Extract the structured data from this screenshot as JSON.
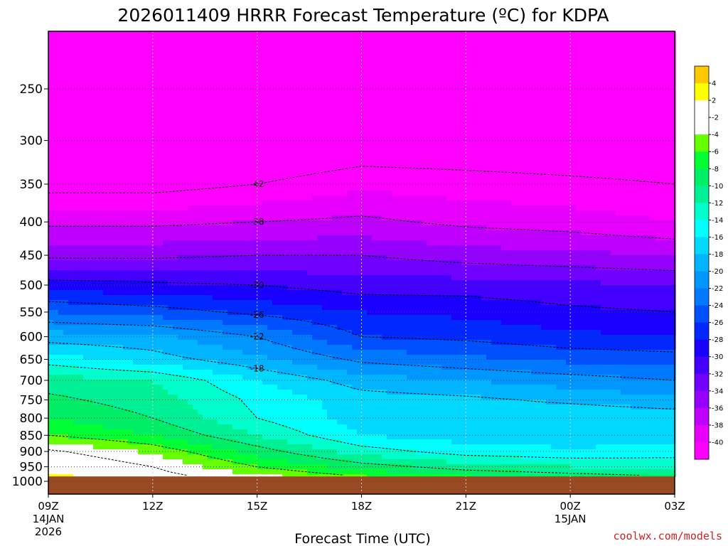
{
  "chart_data": {
    "type": "contour",
    "title": "2026011409 HRRR Forecast Temperature (ºC) for KDPA",
    "xlabel": "Forecast Time (UTC)",
    "credit": "coolwx.com/models",
    "x": {
      "ticks": [
        "09Z",
        "12Z",
        "15Z",
        "18Z",
        "21Z",
        "00Z",
        "03Z"
      ],
      "subticks": [
        [
          "14JAN",
          "2026"
        ],
        [],
        [],
        [],
        [],
        [
          "15JAN"
        ],
        []
      ],
      "hours_range": [
        0,
        18
      ]
    },
    "y": {
      "ticks": [
        250,
        300,
        350,
        400,
        450,
        500,
        550,
        600,
        650,
        700,
        750,
        800,
        850,
        900,
        950,
        1000
      ],
      "range": [
        200,
        1010
      ],
      "below_ground_from": 983
    },
    "colorbar": {
      "labels": [
        "4",
        "2",
        "-2",
        "-4",
        "-6",
        "-8",
        "-10",
        "-12",
        "-14",
        "-16",
        "-18",
        "-20",
        "-22",
        "-24",
        "-26",
        "-28",
        "-30",
        "-32",
        "-34",
        "-36",
        "-38",
        "-40"
      ],
      "colors": [
        "#ffc800",
        "#ffff00",
        "#ffffff",
        "#ffffff",
        "#66ff00",
        "#00ff33",
        "#00ee66",
        "#00f096",
        "#00ffcc",
        "#00ffff",
        "#00d8ff",
        "#00b4ff",
        "#0096ff",
        "#0078ff",
        "#0050ff",
        "#0028ff",
        "#1a00ff",
        "#4400ff",
        "#7000ff",
        "#9600ff",
        "#c000ff",
        "#e800ff",
        "#ff00ff"
      ]
    },
    "profiles": {
      "hours": [
        0,
        3,
        6,
        9,
        12,
        15,
        18
      ],
      "pressure": [
        250,
        300,
        350,
        400,
        450,
        500,
        550,
        600,
        650,
        700,
        750,
        800,
        850,
        900,
        950,
        983
      ],
      "temperature": [
        [
          -46,
          -46,
          -46,
          -47,
          -47,
          -46,
          -46
        ],
        [
          -44,
          -45,
          -45,
          -44,
          -44,
          -44,
          -44
        ],
        [
          -43,
          -43,
          -42,
          -40.5,
          -41,
          -41.5,
          -42
        ],
        [
          -38.5,
          -38.5,
          -38,
          -37.5,
          -38.5,
          -39,
          -40
        ],
        [
          -34.5,
          -34.5,
          -34,
          -34,
          -35,
          -35.5,
          -36
        ],
        [
          -29,
          -29.5,
          -30,
          -31,
          -31,
          -31.5,
          -32
        ],
        [
          -24,
          -25,
          -26.5,
          -28,
          -28.5,
          -29.5,
          -30
        ],
        [
          -19,
          -19.5,
          -22,
          -26,
          -26.5,
          -27.5,
          -28
        ],
        [
          -15,
          -17,
          -19.5,
          -22.5,
          -23.5,
          -24.5,
          -25
        ],
        [
          -11,
          -12,
          -16,
          -19,
          -20,
          -21,
          -22
        ],
        [
          -9.5,
          -11,
          -14.5,
          -17,
          -17.5,
          -18.5,
          -19.5
        ],
        [
          -8,
          -10,
          -14,
          -17,
          -16.5,
          -16,
          -16.5
        ],
        [
          -6,
          -8,
          -12,
          -16,
          -17,
          -17.5,
          -17.5
        ],
        [
          -1.5,
          -4.5,
          -9,
          -13,
          -15,
          -15.5,
          -15
        ],
        [
          1,
          -2,
          -6,
          -9,
          -11,
          -12,
          -12.5
        ],
        [
          3,
          -1,
          -3.5,
          -6,
          -8,
          -9,
          -10
        ]
      ],
      "contour_levels": [
        -42,
        -38,
        -34,
        -30,
        -26,
        -22,
        -18,
        -14,
        -10,
        -6,
        -2
      ],
      "contour_labels": [
        -42,
        -38,
        -30,
        -26,
        -22,
        -18
      ]
    }
  }
}
